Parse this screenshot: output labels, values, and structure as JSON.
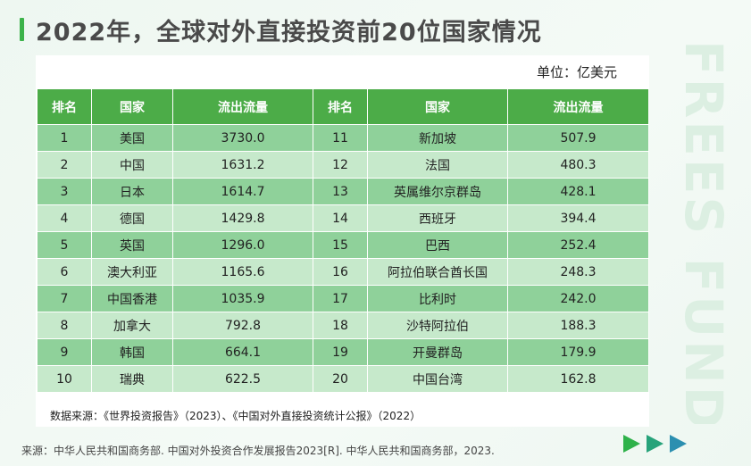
{
  "title": "2022年，全球对外直接投资前20位国家情况",
  "unit": "单位：亿美元",
  "watermark": "FREES FUND",
  "headers": {
    "rank": "排名",
    "country": "国家",
    "flow": "流出流量"
  },
  "rows": [
    {
      "rank_l": "1",
      "country_l": "美国",
      "flow_l": "3730.0",
      "rank_r": "11",
      "country_r": "新加坡",
      "flow_r": "507.9"
    },
    {
      "rank_l": "2",
      "country_l": "中国",
      "flow_l": "1631.2",
      "rank_r": "12",
      "country_r": "法国",
      "flow_r": "480.3"
    },
    {
      "rank_l": "3",
      "country_l": "日本",
      "flow_l": "1614.7",
      "rank_r": "13",
      "country_r": "英属维尔京群岛",
      "flow_r": "428.1"
    },
    {
      "rank_l": "4",
      "country_l": "德国",
      "flow_l": "1429.8",
      "rank_r": "14",
      "country_r": "西班牙",
      "flow_r": "394.4"
    },
    {
      "rank_l": "5",
      "country_l": "英国",
      "flow_l": "1296.0",
      "rank_r": "15",
      "country_r": "巴西",
      "flow_r": "252.4"
    },
    {
      "rank_l": "6",
      "country_l": "澳大利亚",
      "flow_l": "1165.6",
      "rank_r": "16",
      "country_r": "阿拉伯联合酋长国",
      "flow_r": "248.3"
    },
    {
      "rank_l": "7",
      "country_l": "中国香港",
      "flow_l": "1035.9",
      "rank_r": "17",
      "country_r": "比利时",
      "flow_r": "242.0"
    },
    {
      "rank_l": "8",
      "country_l": "加拿大",
      "flow_l": "792.8",
      "rank_r": "18",
      "country_r": "沙特阿拉伯",
      "flow_r": "188.3"
    },
    {
      "rank_l": "9",
      "country_l": "韩国",
      "flow_l": "664.1",
      "rank_r": "19",
      "country_r": "开曼群岛",
      "flow_r": "179.9"
    },
    {
      "rank_l": "10",
      "country_l": "瑞典",
      "flow_l": "622.5",
      "rank_r": "20",
      "country_r": "中国台湾",
      "flow_r": "162.8"
    }
  ],
  "footnote": "数据来源：《世界投资报告》（2023）、《中国对外直接投资统计公报》（2022）",
  "source": "来源：中华人民共和国商务部. 中国对外投资合作发展报告2023[R]. 中华人民共和国商务部，2023.",
  "colors": {
    "accent": "#3cb34a",
    "header_bg": "#4cac48",
    "row_dark": "#8fd19a",
    "row_light": "#c6e9cb",
    "arrow_1": "#2fb24a",
    "arrow_2": "#27a37a",
    "arrow_3": "#2b8fb0"
  }
}
